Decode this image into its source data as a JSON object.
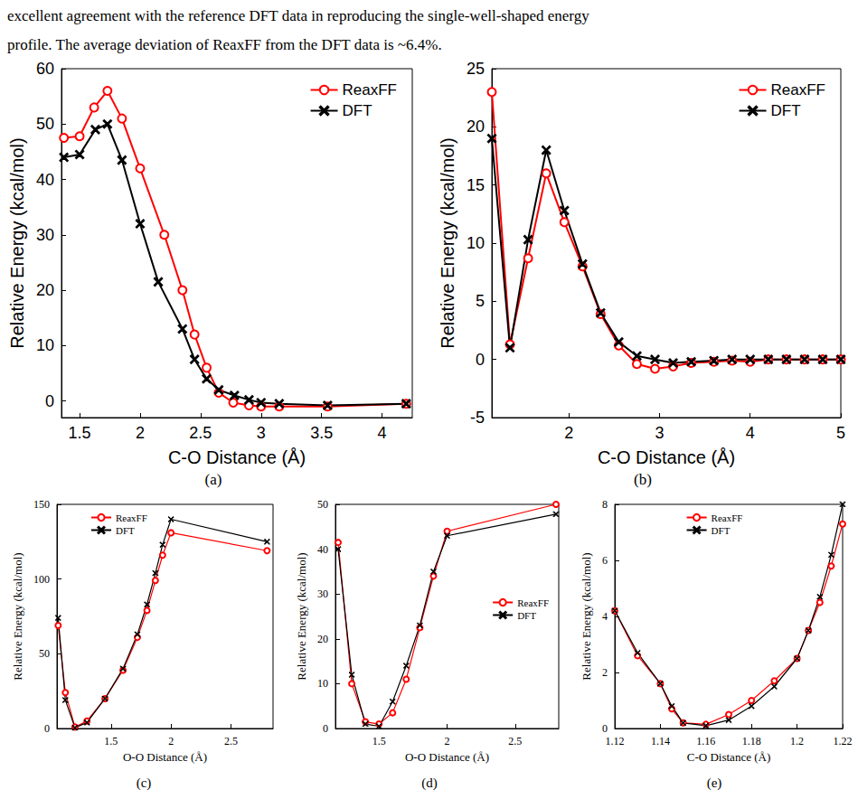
{
  "caption_lines": [
    "excellent agreement with the reference DFT data in reproducing the single-well-shaped energy",
    "profile. The average deviation of ReaxFF from the DFT data is ~6.4%."
  ],
  "chart_data": [
    {
      "type": "line",
      "label": "(a)",
      "x_label": "C-O Distance (Å)",
      "y_label": "Relative Energy (kcal/mol)",
      "xlim": [
        1.35,
        4.25
      ],
      "xticks": [
        1.5,
        2,
        2.5,
        3,
        3.5,
        4
      ],
      "ylim": [
        -3,
        60
      ],
      "yticks": [
        0,
        10,
        20,
        30,
        40,
        50,
        60
      ],
      "grid": false,
      "legend": "upper right",
      "series": [
        {
          "name": "ReaxFF",
          "color": "#ff0000",
          "marker": "circle-open",
          "x": [
            1.37,
            1.5,
            1.62,
            1.73,
            1.85,
            2.0,
            2.2,
            2.35,
            2.45,
            2.55,
            2.65,
            2.77,
            2.9,
            3.0,
            3.15,
            3.55,
            4.2
          ],
          "values": [
            47.5,
            47.8,
            53,
            56,
            51,
            42,
            30,
            20,
            12,
            6,
            1.5,
            -0.3,
            -0.8,
            -1,
            -1,
            -1,
            -0.5
          ]
        },
        {
          "name": "DFT",
          "color": "#000000",
          "marker": "x",
          "x": [
            1.37,
            1.5,
            1.63,
            1.73,
            1.85,
            2.0,
            2.15,
            2.35,
            2.45,
            2.55,
            2.65,
            2.78,
            2.9,
            3.0,
            3.15,
            3.55,
            4.2
          ],
          "values": [
            44,
            44.5,
            49,
            50,
            43.5,
            32,
            21.5,
            13,
            7.5,
            4,
            2,
            1,
            0.2,
            -0.3,
            -0.5,
            -0.8,
            -0.5
          ]
        }
      ]
    },
    {
      "type": "line",
      "label": "(b)",
      "x_label": "C-O Distance (Å)",
      "y_label": "Relative Energy (kcal/mol)",
      "xlim": [
        1.15,
        5
      ],
      "xticks": [
        2,
        3,
        4,
        5
      ],
      "ylim": [
        -5,
        25
      ],
      "yticks": [
        -5,
        0,
        5,
        10,
        15,
        20,
        25
      ],
      "grid": false,
      "legend": "upper right",
      "series": [
        {
          "name": "ReaxFF",
          "color": "#ff0000",
          "marker": "circle-open",
          "x": [
            1.15,
            1.35,
            1.55,
            1.75,
            1.95,
            2.15,
            2.35,
            2.55,
            2.75,
            2.95,
            3.15,
            3.35,
            3.6,
            3.8,
            4.0,
            4.2,
            4.4,
            4.6,
            4.8,
            5.0
          ],
          "values": [
            23,
            1.3,
            8.7,
            16,
            11.8,
            8,
            3.9,
            1.2,
            -0.4,
            -0.8,
            -0.6,
            -0.3,
            -0.2,
            -0.1,
            -0.2,
            0,
            0,
            0,
            0,
            0
          ]
        },
        {
          "name": "DFT",
          "color": "#000000",
          "marker": "x",
          "x": [
            1.15,
            1.35,
            1.55,
            1.75,
            1.95,
            2.15,
            2.35,
            2.55,
            2.75,
            2.95,
            3.15,
            3.35,
            3.6,
            3.8,
            4.0,
            4.2,
            4.4,
            4.6,
            4.8,
            5.0
          ],
          "values": [
            19,
            1,
            10.3,
            18,
            12.8,
            8.2,
            4,
            1.5,
            0.3,
            0,
            -0.3,
            -0.2,
            -0.1,
            0,
            0,
            0,
            0,
            0,
            0,
            0
          ]
        }
      ]
    },
    {
      "type": "line",
      "label": "(c)",
      "x_label": "O-O Distance (Å)",
      "y_label": "Relative Energy (kcal/mol)",
      "xlim": [
        1.05,
        2.85
      ],
      "xticks": [
        1.5,
        2,
        2.5
      ],
      "ylim": [
        0,
        150
      ],
      "yticks": [
        0,
        50,
        100,
        150
      ],
      "grid": false,
      "legend": "upper left",
      "series": [
        {
          "name": "ReaxFF",
          "color": "#ff0000",
          "marker": "circle-open",
          "x": [
            1.06,
            1.12,
            1.2,
            1.3,
            1.45,
            1.6,
            1.72,
            1.8,
            1.87,
            1.93,
            2.0,
            2.8
          ],
          "values": [
            69,
            24,
            1,
            5,
            20,
            39,
            61,
            79,
            99,
            116,
            131,
            119
          ]
        },
        {
          "name": "DFT",
          "color": "#000000",
          "marker": "x",
          "x": [
            1.06,
            1.12,
            1.2,
            1.3,
            1.45,
            1.6,
            1.72,
            1.8,
            1.87,
            1.93,
            2.0,
            2.8
          ],
          "values": [
            74,
            19,
            0.5,
            4,
            20,
            40,
            63,
            83,
            104,
            123,
            140,
            125
          ]
        }
      ]
    },
    {
      "type": "line",
      "label": "(d)",
      "x_label": "O-O Distance (Å)",
      "y_label": "Relative Energy (kcal/mol)",
      "xlim": [
        1.18,
        2.82
      ],
      "xticks": [
        1.5,
        2,
        2.5
      ],
      "ylim": [
        0,
        50
      ],
      "yticks": [
        0,
        10,
        20,
        30,
        40,
        50
      ],
      "grid": false,
      "legend": "right",
      "series": [
        {
          "name": "ReaxFF",
          "color": "#ff0000",
          "marker": "circle-open",
          "x": [
            1.2,
            1.3,
            1.4,
            1.5,
            1.6,
            1.7,
            1.8,
            1.9,
            2.0,
            2.8
          ],
          "values": [
            41.5,
            10,
            1.5,
            1,
            3.5,
            11,
            22.5,
            34,
            44,
            50
          ]
        },
        {
          "name": "DFT",
          "color": "#000000",
          "marker": "x",
          "x": [
            1.2,
            1.3,
            1.4,
            1.5,
            1.6,
            1.7,
            1.8,
            1.9,
            2.0,
            2.8
          ],
          "values": [
            40,
            12,
            1,
            0.5,
            6,
            14,
            23,
            35,
            43,
            47.8
          ]
        }
      ]
    },
    {
      "type": "line",
      "label": "(e)",
      "x_label": "C-O Distance (Å)",
      "y_label": "Relative Energy (kcal/mol)",
      "xlim": [
        1.12,
        1.22
      ],
      "xticks": [
        1.12,
        1.14,
        1.16,
        1.18,
        1.2,
        1.22
      ],
      "ylim": [
        0,
        8
      ],
      "yticks": [
        0,
        2,
        4,
        6,
        8
      ],
      "grid": false,
      "legend": "upper center",
      "series": [
        {
          "name": "ReaxFF",
          "color": "#ff0000",
          "marker": "circle-open",
          "x": [
            1.12,
            1.13,
            1.14,
            1.145,
            1.15,
            1.16,
            1.17,
            1.18,
            1.19,
            1.2,
            1.205,
            1.21,
            1.215,
            1.22
          ],
          "values": [
            4.2,
            2.6,
            1.6,
            0.7,
            0.2,
            0.15,
            0.5,
            1.0,
            1.7,
            2.5,
            3.5,
            4.5,
            5.8,
            7.3
          ]
        },
        {
          "name": "DFT",
          "color": "#000000",
          "marker": "x",
          "x": [
            1.12,
            1.13,
            1.14,
            1.145,
            1.15,
            1.16,
            1.17,
            1.18,
            1.19,
            1.2,
            1.205,
            1.21,
            1.215,
            1.22
          ],
          "values": [
            4.2,
            2.7,
            1.6,
            0.8,
            0.2,
            0.1,
            0.3,
            0.8,
            1.5,
            2.5,
            3.5,
            4.7,
            6.2,
            8.0
          ]
        }
      ]
    }
  ]
}
